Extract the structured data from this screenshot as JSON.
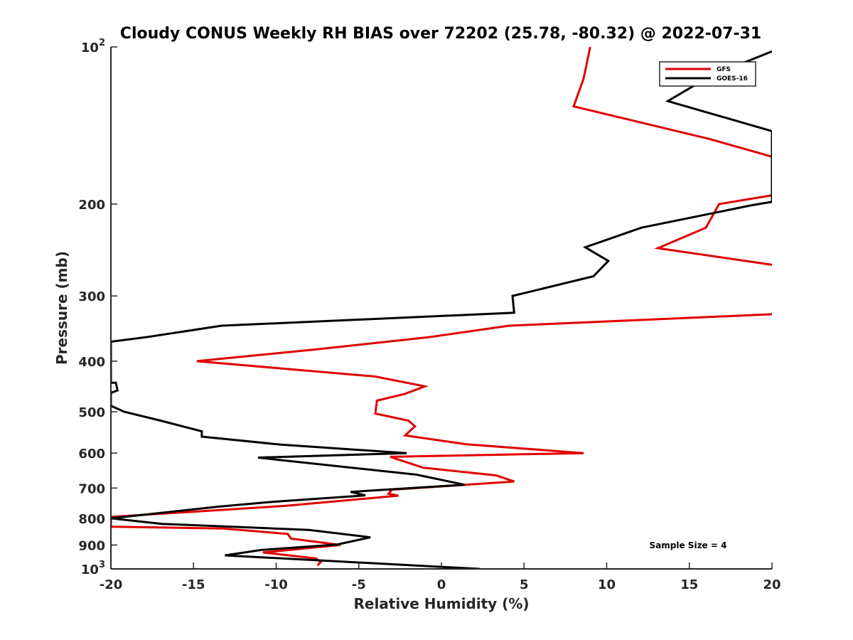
{
  "chart_data": {
    "type": "line",
    "title": "Cloudy CONUS Weekly RH BIAS over 72202 (25.78, -80.32) @ 2022-07-31",
    "xlabel": "Relative Humidity (%)",
    "ylabel": "Pressure (mb)",
    "xlim": [
      -20,
      20
    ],
    "ylim": [
      100,
      1000
    ],
    "yscale": "log",
    "y_reversed": true,
    "x_ticks": [
      "-20",
      "-15",
      "-10",
      "-5",
      "0",
      "5",
      "10",
      "15",
      "20"
    ],
    "y_ticks": [
      {
        "value": 100,
        "base": "10",
        "exp": "2"
      },
      {
        "value": 200,
        "label": "200"
      },
      {
        "value": 300,
        "label": "300"
      },
      {
        "value": 400,
        "label": "400"
      },
      {
        "value": 500,
        "label": "500"
      },
      {
        "value": 600,
        "label": "600"
      },
      {
        "value": 700,
        "label": "700"
      },
      {
        "value": 800,
        "label": "800"
      },
      {
        "value": 900,
        "label": "900"
      },
      {
        "value": 1000,
        "base": "10",
        "exp": "3"
      }
    ],
    "grid": false,
    "legend_position": "top-right",
    "annotation": "Sample Size = 4",
    "series": [
      {
        "name": "GFS",
        "color": "#e00000",
        "points": [
          [
            9.0,
            100
          ],
          [
            8.6,
            115
          ],
          [
            8.0,
            130
          ],
          [
            16.2,
            150
          ],
          [
            20.2,
            163
          ],
          [
            20.2,
            192
          ],
          [
            16.8,
            200
          ],
          [
            16.0,
            222
          ],
          [
            13.1,
            243
          ],
          [
            20.2,
            262
          ],
          [
            20.2,
            325
          ],
          [
            4.1,
            342
          ],
          [
            -0.8,
            360
          ],
          [
            -7.7,
            380
          ],
          [
            -14.8,
            400
          ],
          [
            -4.0,
            428
          ],
          [
            -1.0,
            447
          ],
          [
            -2.2,
            462
          ],
          [
            -3.9,
            476
          ],
          [
            -4.0,
            504
          ],
          [
            -2.0,
            520
          ],
          [
            -1.6,
            533
          ],
          [
            -2.2,
            555
          ],
          [
            1.5,
            577
          ],
          [
            8.6,
            600
          ],
          [
            -3.1,
            610
          ],
          [
            -1.1,
            640
          ],
          [
            3.3,
            662
          ],
          [
            4.4,
            680
          ],
          [
            -3.0,
            705
          ],
          [
            -3.2,
            718
          ],
          [
            -2.6,
            724
          ],
          [
            -9.4,
            757
          ],
          [
            -20.0,
            795
          ],
          [
            -20.0,
            830
          ],
          [
            -13.2,
            837
          ],
          [
            -9.3,
            857
          ],
          [
            -9.1,
            875
          ],
          [
            -6.1,
            900
          ],
          [
            -10.8,
            930
          ],
          [
            -7.6,
            955
          ],
          [
            -7.3,
            970
          ],
          [
            -7.5,
            985
          ]
        ]
      },
      {
        "name": "GOES-16",
        "color": "#000000",
        "points": [
          [
            20.0,
            102
          ],
          [
            16.2,
            114
          ],
          [
            13.7,
            127
          ],
          [
            20.0,
            145
          ],
          [
            20.0,
            198
          ],
          [
            18.8,
            201
          ],
          [
            12.1,
            222
          ],
          [
            8.7,
            242
          ],
          [
            10.1,
            257
          ],
          [
            9.2,
            275
          ],
          [
            4.3,
            300
          ],
          [
            4.4,
            323
          ],
          [
            -13.3,
            342
          ],
          [
            -17.9,
            360
          ],
          [
            -20.0,
            367
          ],
          [
            -20.0,
            440
          ],
          [
            -19.7,
            440
          ],
          [
            -19.6,
            455
          ],
          [
            -20.0,
            460
          ],
          [
            -20.0,
            487
          ],
          [
            -19.2,
            500
          ],
          [
            -17.0,
            520
          ],
          [
            -14.5,
            545
          ],
          [
            -14.5,
            558
          ],
          [
            -9.7,
            578
          ],
          [
            -2.1,
            600
          ],
          [
            -11.1,
            612
          ],
          [
            -1.5,
            660
          ],
          [
            1.4,
            690
          ],
          [
            -5.5,
            712
          ],
          [
            -4.6,
            723
          ],
          [
            -10.5,
            745
          ],
          [
            -13.5,
            760
          ],
          [
            -20.0,
            800
          ],
          [
            -16.9,
            820
          ],
          [
            -8.0,
            842
          ],
          [
            -4.3,
            870
          ],
          [
            -6.3,
            898
          ],
          [
            -10.9,
            920
          ],
          [
            -13.1,
            942
          ],
          [
            2.3,
            1000
          ]
        ]
      }
    ]
  }
}
